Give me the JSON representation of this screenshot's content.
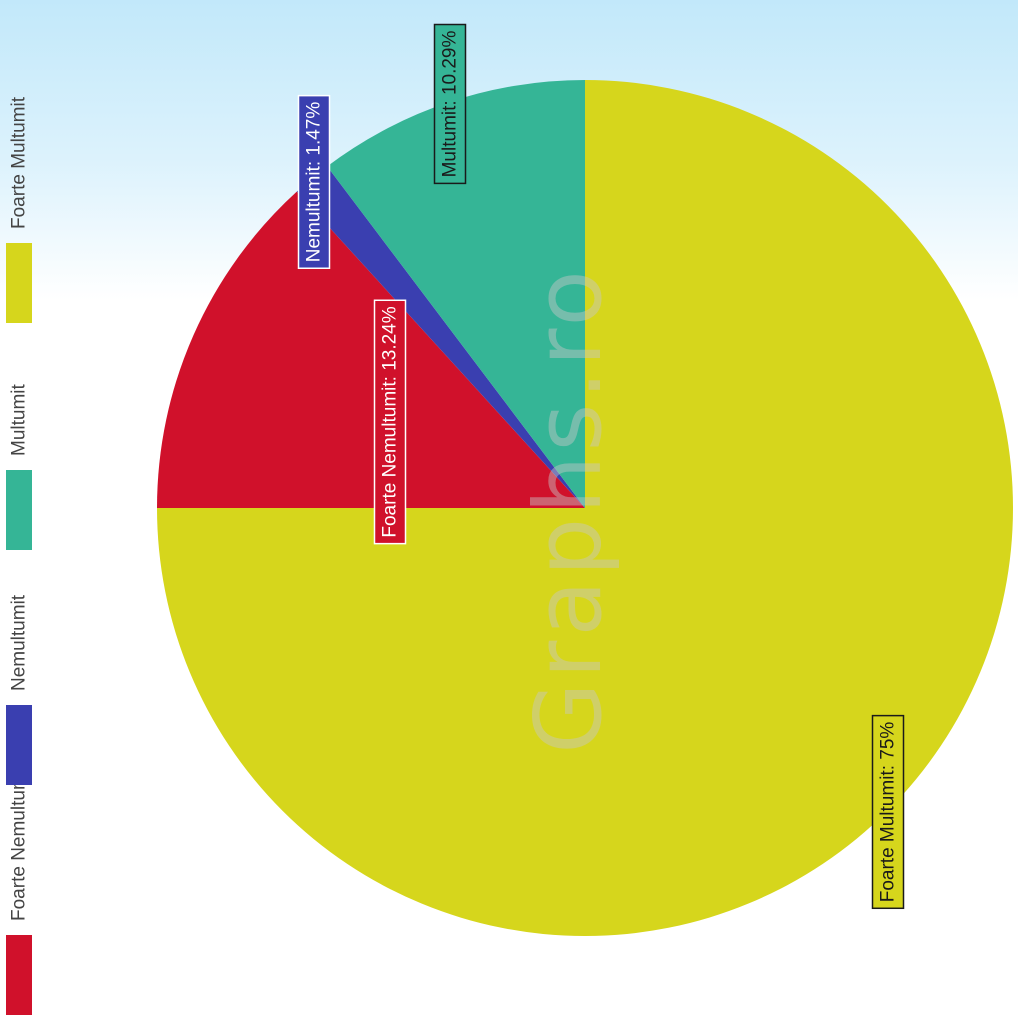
{
  "chart_data": {
    "type": "pie",
    "title": "",
    "categories": [
      "Foarte Nemultumit",
      "Nemultumit",
      "Multumit",
      "Foarte Multumit"
    ],
    "values": [
      13.24,
      1.47,
      10.29,
      75
    ],
    "unit": "%",
    "colors": [
      "#d0112b",
      "#3a3fb0",
      "#35b596",
      "#d6d61c"
    ],
    "legend_position": "left",
    "orientation": "rotated 90 degrees counter-clockwise",
    "data_labels": [
      {
        "category": "Foarte Nemultumit",
        "text": "Foarte Nemultumit: 13.24%"
      },
      {
        "category": "Nemultumit",
        "text": "Nemultumit: 1.47%"
      },
      {
        "category": "Multumit",
        "text": "Multumit: 10.29%"
      },
      {
        "category": "Foarte Multumit",
        "text": "Foarte Multumit: 75%"
      }
    ],
    "legend": {
      "items": [
        {
          "label": "Foarte Nemultumit",
          "color": "#d0112b"
        },
        {
          "label": "Nemultumit",
          "color": "#3a3fb0"
        },
        {
          "label": "Multumit",
          "color": "#35b596"
        },
        {
          "label": "Foarte Multumit",
          "color": "#d6d61c"
        }
      ]
    },
    "watermark": "Graphs.ro"
  }
}
